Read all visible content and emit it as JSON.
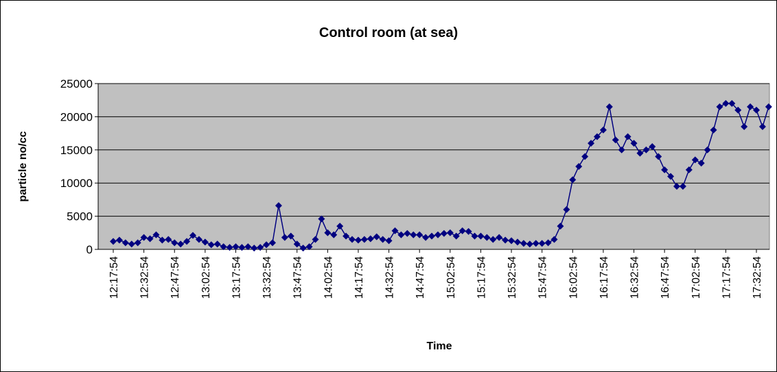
{
  "chart_data": {
    "type": "line",
    "title": "Control room (at sea)",
    "x_label": "Time",
    "y_label": "particle no/cc",
    "categories": [
      "12:17:54",
      null,
      null,
      null,
      null,
      "12:32:54",
      null,
      null,
      null,
      null,
      "12:47:54",
      null,
      null,
      null,
      null,
      "13:02:54",
      null,
      null,
      null,
      null,
      "13:17:54",
      null,
      null,
      null,
      null,
      "13:32:54",
      null,
      null,
      null,
      null,
      "13:47:54",
      null,
      null,
      null,
      null,
      "14:02:54",
      null,
      null,
      null,
      null,
      "14:17:54",
      null,
      null,
      null,
      null,
      "14:32:54",
      null,
      null,
      null,
      null,
      "14:47:54",
      null,
      null,
      null,
      null,
      "15:02:54",
      null,
      null,
      null,
      null,
      "15:17:54",
      null,
      null,
      null,
      null,
      "15:32:54",
      null,
      null,
      null,
      null,
      "15:47:54",
      null,
      null,
      null,
      null,
      "16:02:54",
      null,
      null,
      null,
      null,
      "16:17:54",
      null,
      null,
      null,
      null,
      "16:32:54",
      null,
      null,
      null,
      null,
      "16:47:54",
      null,
      null,
      null,
      null,
      "17:02:54",
      null,
      null,
      null,
      null,
      "17:17:54",
      null,
      null,
      null,
      null,
      "17:32:54",
      null,
      null
    ],
    "series": [
      {
        "name": "particle no/cc",
        "color": "#000080",
        "values": [
          1200,
          1400,
          1000,
          800,
          1000,
          1800,
          1600,
          2200,
          1400,
          1500,
          1000,
          800,
          1200,
          2100,
          1500,
          1100,
          700,
          800,
          400,
          300,
          400,
          300,
          400,
          200,
          300,
          700,
          1000,
          6600,
          1800,
          2000,
          800,
          200,
          400,
          1500,
          4600,
          2500,
          2200,
          3500,
          2000,
          1500,
          1400,
          1500,
          1600,
          1900,
          1500,
          1300,
          2800,
          2200,
          2400,
          2200,
          2200,
          1800,
          2000,
          2200,
          2400,
          2500,
          2000,
          2800,
          2700,
          2000,
          2000,
          1800,
          1500,
          1800,
          1400,
          1300,
          1100,
          900,
          800,
          900,
          900,
          1000,
          1500,
          3500,
          6000,
          10500,
          12500,
          14000,
          16000,
          17000,
          18000,
          21500,
          16500,
          15000,
          17000,
          16000,
          14500,
          15000,
          15500,
          14000,
          12000,
          11000,
          9500,
          9500,
          12000,
          13500,
          13000,
          15000,
          18000,
          21500,
          22000,
          22000,
          21000,
          18500,
          21500,
          21000,
          18500,
          21500
        ]
      }
    ],
    "ylim": [
      0,
      25000
    ],
    "yticks": [
      0,
      5000,
      10000,
      15000,
      20000,
      25000
    ],
    "grid": true,
    "plot_background": "#c0c0c0"
  }
}
